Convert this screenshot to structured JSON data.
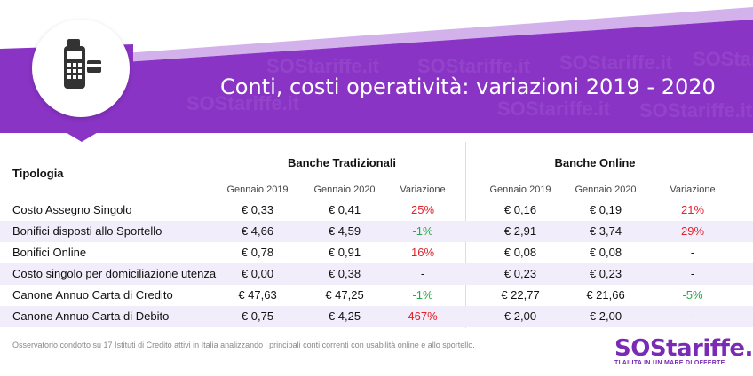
{
  "header": {
    "title": "Conti, costi operatività: variazioni 2019 - 2020",
    "icon": "card-terminal-icon",
    "colors": {
      "banner": "#8a34c6",
      "banner_light": "#c79ae6",
      "accent": "#7a2bb5"
    }
  },
  "watermark": "SOStariffe.it",
  "table": {
    "label_header": "Tipologia",
    "groups": [
      "Banche Tradizionali",
      "Banche Online"
    ],
    "columns": [
      "Gennaio 2019",
      "Gennaio 2020",
      "Variazione",
      "Gennaio 2019",
      "Gennaio 2020",
      "Variazione"
    ],
    "rows": [
      {
        "label": "Costo Assegno Singolo",
        "trad_2019": "€ 0,33",
        "trad_2020": "€ 0,41",
        "trad_var": "25%",
        "trad_var_color": "red",
        "online_2019": "€ 0,16",
        "online_2020": "€ 0,19",
        "online_var": "21%",
        "online_var_color": "red"
      },
      {
        "label": "Bonifici disposti allo Sportello",
        "trad_2019": "€ 4,66",
        "trad_2020": "€ 4,59",
        "trad_var": "-1%",
        "trad_var_color": "green",
        "online_2019": "€ 2,91",
        "online_2020": "€ 3,74",
        "online_var": "29%",
        "online_var_color": "red"
      },
      {
        "label": "Bonifici Online",
        "trad_2019": "€ 0,78",
        "trad_2020": "€ 0,91",
        "trad_var": "16%",
        "trad_var_color": "red",
        "online_2019": "€ 0,08",
        "online_2020": "€ 0,08",
        "online_var": "-",
        "online_var_color": "plain"
      },
      {
        "label": "Costo singolo per domiciliazione utenza",
        "trad_2019": "€ 0,00",
        "trad_2020": "€ 0,38",
        "trad_var": "-",
        "trad_var_color": "plain",
        "online_2019": "€ 0,23",
        "online_2020": "€ 0,23",
        "online_var": "-",
        "online_var_color": "plain"
      },
      {
        "label": "Canone Annuo Carta di Credito",
        "trad_2019": "€ 47,63",
        "trad_2020": "€ 47,25",
        "trad_var": "-1%",
        "trad_var_color": "green",
        "online_2019": "€ 22,77",
        "online_2020": "€ 21,66",
        "online_var": "-5%",
        "online_var_color": "green"
      },
      {
        "label": "Canone Annuo Carta di Debito",
        "trad_2019": "€ 0,75",
        "trad_2020": "€ 4,25",
        "trad_var": "467%",
        "trad_var_color": "red",
        "online_2019": "€ 2,00",
        "online_2020": "€ 2,00",
        "online_var": "-",
        "online_var_color": "plain"
      }
    ]
  },
  "footnote": "Osservatorio condotto su 17 Istituti di Credito attivi in Italia analizzando i principali conti correnti con usabilità online e allo sportello.",
  "logo": {
    "brand": "SOStariffe.it",
    "tagline": "TI AIUTA IN UN MARE DI OFFERTE"
  }
}
